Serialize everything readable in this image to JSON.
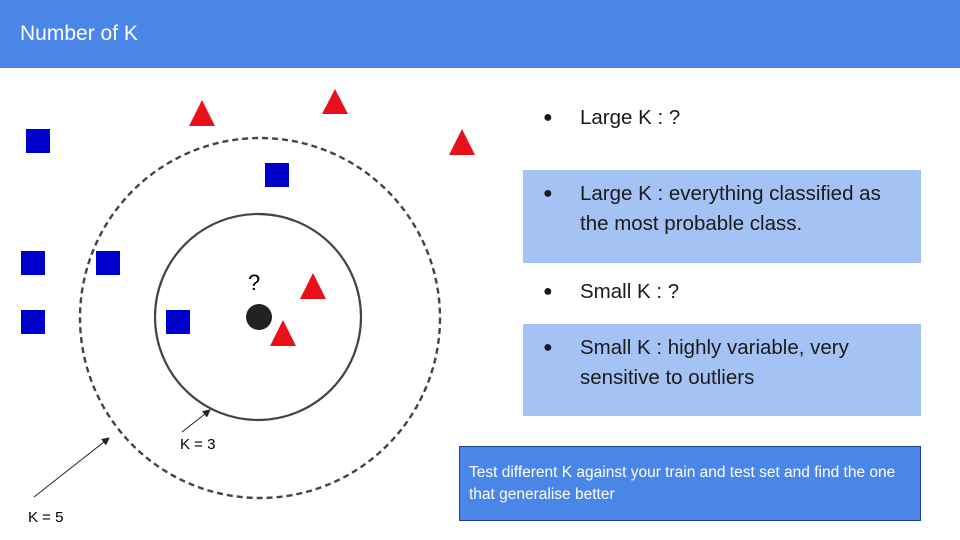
{
  "header": {
    "title": "Number of K"
  },
  "diagram": {
    "query_label": "?",
    "k3_label": "K = 3",
    "k5_label": "K = 5",
    "class_a": {
      "shape": "square",
      "color": "#0000cc",
      "count": 6
    },
    "class_b": {
      "shape": "triangle",
      "color": "#e8101a",
      "count": 5
    },
    "query_point_color": "#222222"
  },
  "bullets": [
    {
      "marker": "●",
      "text": "Large K :  ?",
      "shaded": false
    },
    {
      "marker": "●",
      "text": "Large K :  everything classified as the most probable class.",
      "shaded": true
    },
    {
      "marker": "●",
      "text": "Small K :  ?",
      "shaded": false
    },
    {
      "marker": "●",
      "text": "Small K :  highly variable, very sensitive to outliers",
      "shaded": true
    }
  ],
  "note": {
    "text": "Test different K against your train and test set and find the one that generalise better"
  },
  "colors": {
    "header": "#4a86e8",
    "shade": "#a4c2f4",
    "note_bg": "#4a86e8"
  }
}
